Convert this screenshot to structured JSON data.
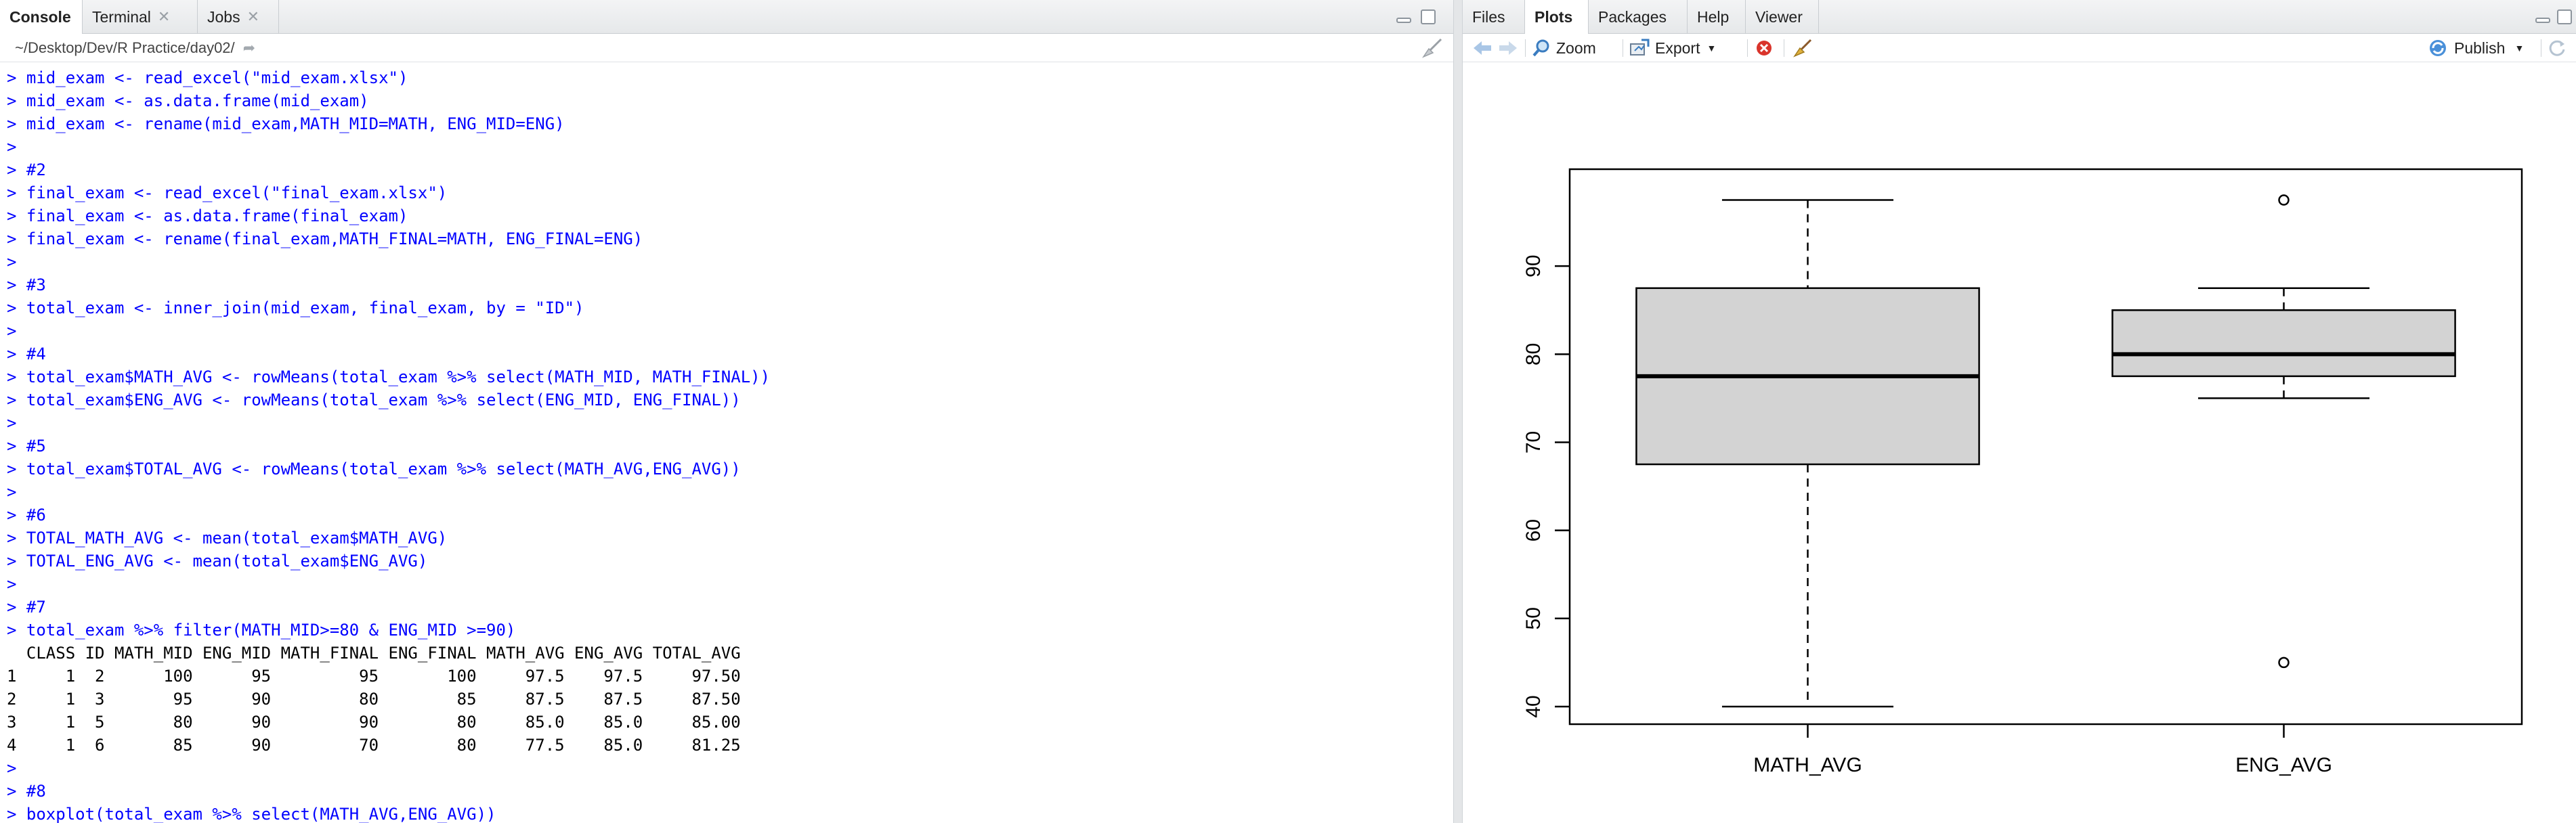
{
  "left_pane": {
    "tabs": [
      {
        "label": "Console",
        "active": true,
        "closable": false
      },
      {
        "label": "Terminal",
        "active": false,
        "closable": true
      },
      {
        "label": "Jobs",
        "active": false,
        "closable": true
      }
    ],
    "path": "~/Desktop/Dev/R Practice/day02/",
    "console_lines": [
      {
        "kind": "cmd",
        "text": "> mid_exam <- read_excel(\"mid_exam.xlsx\")"
      },
      {
        "kind": "cmd",
        "text": "> mid_exam <- as.data.frame(mid_exam)"
      },
      {
        "kind": "cmd",
        "text": "> mid_exam <- rename(mid_exam,MATH_MID=MATH, ENG_MID=ENG)"
      },
      {
        "kind": "cmd",
        "text": ">"
      },
      {
        "kind": "cmd",
        "text": "> #2"
      },
      {
        "kind": "cmd",
        "text": "> final_exam <- read_excel(\"final_exam.xlsx\")"
      },
      {
        "kind": "cmd",
        "text": "> final_exam <- as.data.frame(final_exam)"
      },
      {
        "kind": "cmd",
        "text": "> final_exam <- rename(final_exam,MATH_FINAL=MATH, ENG_FINAL=ENG)"
      },
      {
        "kind": "cmd",
        "text": ">"
      },
      {
        "kind": "cmd",
        "text": "> #3"
      },
      {
        "kind": "cmd",
        "text": "> total_exam <- inner_join(mid_exam, final_exam, by = \"ID\")"
      },
      {
        "kind": "cmd",
        "text": ">"
      },
      {
        "kind": "cmd",
        "text": "> #4"
      },
      {
        "kind": "cmd",
        "text": "> total_exam$MATH_AVG <- rowMeans(total_exam %>% select(MATH_MID, MATH_FINAL))"
      },
      {
        "kind": "cmd",
        "text": "> total_exam$ENG_AVG <- rowMeans(total_exam %>% select(ENG_MID, ENG_FINAL))"
      },
      {
        "kind": "cmd",
        "text": ">"
      },
      {
        "kind": "cmd",
        "text": "> #5"
      },
      {
        "kind": "cmd",
        "text": "> total_exam$TOTAL_AVG <- rowMeans(total_exam %>% select(MATH_AVG,ENG_AVG))"
      },
      {
        "kind": "cmd",
        "text": ">"
      },
      {
        "kind": "cmd",
        "text": "> #6"
      },
      {
        "kind": "cmd",
        "text": "> TOTAL_MATH_AVG <- mean(total_exam$MATH_AVG)"
      },
      {
        "kind": "cmd",
        "text": "> TOTAL_ENG_AVG <- mean(total_exam$ENG_AVG)"
      },
      {
        "kind": "cmd",
        "text": ">"
      },
      {
        "kind": "cmd",
        "text": "> #7"
      },
      {
        "kind": "cmd",
        "text": "> total_exam %>% filter(MATH_MID>=80 & ENG_MID >=90)"
      },
      {
        "kind": "out",
        "text": "  CLASS ID MATH_MID ENG_MID MATH_FINAL ENG_FINAL MATH_AVG ENG_AVG TOTAL_AVG"
      },
      {
        "kind": "out",
        "text": "1     1  2      100      95         95       100     97.5    97.5     97.50"
      },
      {
        "kind": "out",
        "text": "2     1  3       95      90         80        85     87.5    87.5     87.50"
      },
      {
        "kind": "out",
        "text": "3     1  5       80      90         90        80     85.0    85.0     85.00"
      },
      {
        "kind": "out",
        "text": "4     1  6       85      90         70        80     77.5    85.0     81.25"
      },
      {
        "kind": "cmd",
        "text": ">"
      },
      {
        "kind": "cmd",
        "text": "> #8"
      },
      {
        "kind": "cmd",
        "text": "> boxplot(total_exam %>% select(MATH_AVG,ENG_AVG))"
      }
    ]
  },
  "right_pane": {
    "tabs": [
      {
        "label": "Files",
        "active": false
      },
      {
        "label": "Plots",
        "active": true
      },
      {
        "label": "Packages",
        "active": false
      },
      {
        "label": "Help",
        "active": false
      },
      {
        "label": "Viewer",
        "active": false
      }
    ],
    "toolbar": {
      "zoom_label": "Zoom",
      "export_label": "Export",
      "publish_label": "Publish",
      "icons": [
        "back-arrow-icon",
        "forward-arrow-icon",
        "zoom-icon",
        "export-icon",
        "remove-plot-icon",
        "broom-icon",
        "publish-icon",
        "refresh-icon"
      ]
    }
  },
  "chart_data": {
    "type": "boxplot",
    "title": "",
    "xlabel": "",
    "ylabel": "",
    "ylim": [
      38,
      101
    ],
    "y_ticks": [
      40,
      50,
      60,
      70,
      80,
      90
    ],
    "categories": [
      "MATH_AVG",
      "ENG_AVG"
    ],
    "boxes": [
      {
        "name": "MATH_AVG",
        "whisker_low": 40,
        "q1": 67.5,
        "median": 77.5,
        "q3": 87.5,
        "whisker_high": 97.5,
        "outliers": []
      },
      {
        "name": "ENG_AVG",
        "whisker_low": 75,
        "q1": 77.5,
        "median": 80,
        "q3": 85,
        "whisker_high": 87.5,
        "outliers": [
          97.5,
          45
        ]
      }
    ],
    "colors": {
      "box_fill": "#d3d3d3",
      "stroke": "#000000"
    }
  }
}
